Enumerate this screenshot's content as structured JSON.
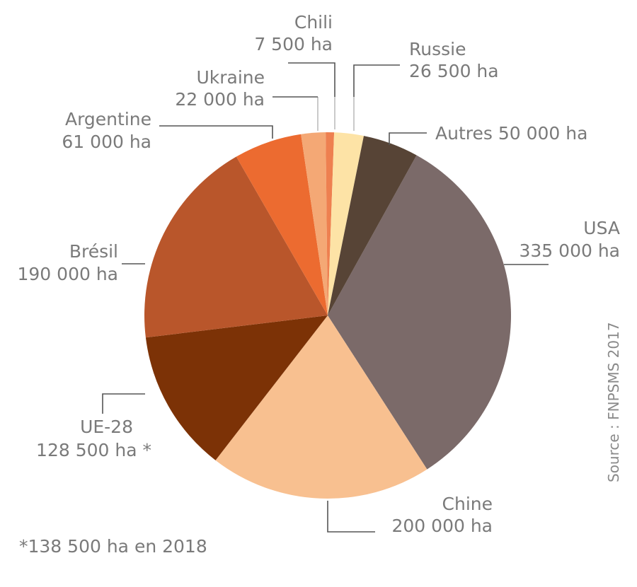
{
  "chart_data": {
    "type": "pie",
    "unit": "ha",
    "slices": [
      {
        "name": "USA",
        "value": 335000,
        "value_label": "335 000 ha",
        "color": "#7b6a69"
      },
      {
        "name": "Chine",
        "value": 200000,
        "value_label": "200 000 ha",
        "color": "#f8c090"
      },
      {
        "name": "UE-28",
        "value": 128500,
        "value_label": "128 500 ha *",
        "color": "#7c3206"
      },
      {
        "name": "Brésil",
        "value": 190000,
        "value_label": "190 000 ha",
        "color": "#b9562b"
      },
      {
        "name": "Argentine",
        "value": 61000,
        "value_label": "61 000 ha",
        "color": "#ec6b30"
      },
      {
        "name": "Ukraine",
        "value": 22000,
        "value_label": "22 000 ha",
        "color": "#f4a875"
      },
      {
        "name": "Chili",
        "value": 7500,
        "value_label": "7 500 ha",
        "color": "#ee8050"
      },
      {
        "name": "Russie",
        "value": 26500,
        "value_label": "26 500 ha",
        "color": "#fde3a6"
      },
      {
        "name": "Autres",
        "value": 50000,
        "value_label": "50 000 ha",
        "color": "#574436"
      }
    ],
    "footnote": "*138 500 ha en 2018",
    "source": "Source : FNPSMS 2017"
  }
}
